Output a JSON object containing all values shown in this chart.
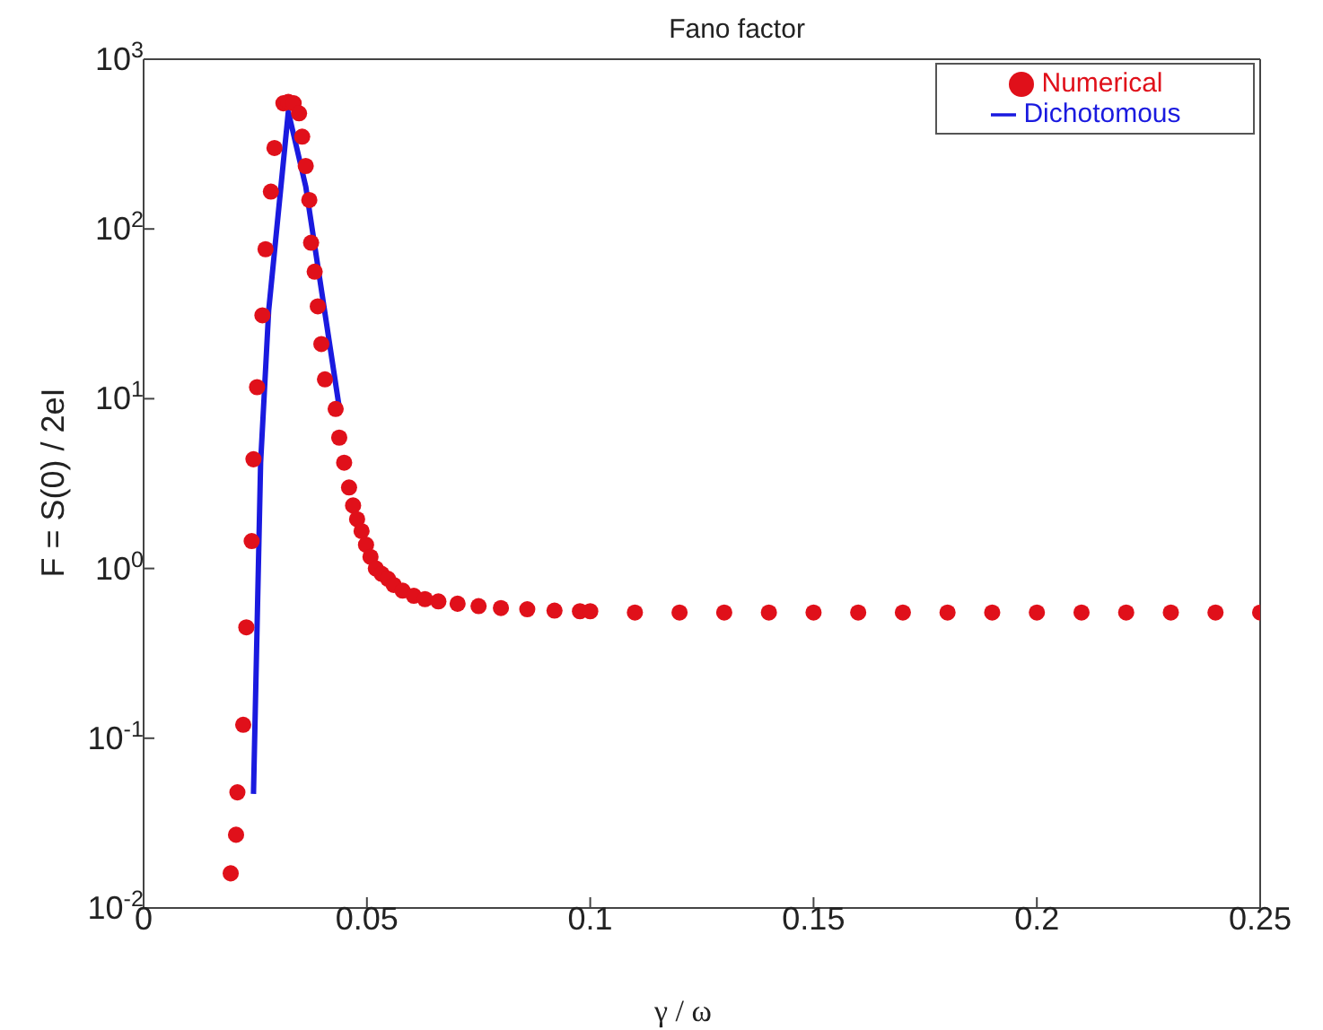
{
  "chart_data": {
    "type": "scatter",
    "title": "Fano factor",
    "xlabel": "γ / ω",
    "ylabel": "F = S(0) / 2eI",
    "log": "y",
    "xlim": [
      0,
      0.25
    ],
    "xticks": [
      0,
      0.05,
      0.1,
      0.15,
      0.2,
      0.25
    ],
    "ylim": [
      0.01,
      1000
    ],
    "yticks": [
      {
        "value": 0.01,
        "label": "10$^{-2}$"
      },
      {
        "value": 0.1,
        "label": "10$^{-1}$"
      },
      {
        "value": 1,
        "label": "10$^{0}$"
      },
      {
        "value": 10,
        "label": "10$^{1}$"
      },
      {
        "value": 100,
        "label": "10$^{2}$"
      },
      {
        "value": 1000,
        "label": "10$^{3}$"
      }
    ],
    "legend": "top right",
    "grid": false,
    "series": [
      {
        "name": "Numerical",
        "type": "scatter",
        "marker": "circle",
        "color": "#e0101a",
        "x": [
          0.0195,
          0.0207,
          0.021,
          0.0223,
          0.023,
          0.0242,
          0.0246,
          0.0254,
          0.0266,
          0.0273,
          0.0285,
          0.0293,
          0.0313,
          0.0324,
          0.0336,
          0.0348,
          0.0355,
          0.0363,
          0.0371,
          0.0375,
          0.0383,
          0.039,
          0.0398,
          0.0406,
          0.043,
          0.0438,
          0.0449,
          0.046,
          0.0469,
          0.0478,
          0.0488,
          0.0498,
          0.0508,
          0.052,
          0.0533,
          0.0547,
          0.056,
          0.058,
          0.0605,
          0.063,
          0.066,
          0.0703,
          0.075,
          0.08,
          0.0859,
          0.092,
          0.0977,
          0.1,
          0.11,
          0.12,
          0.13,
          0.14,
          0.15,
          0.16,
          0.17,
          0.18,
          0.19,
          0.2,
          0.21,
          0.22,
          0.23,
          0.24,
          0.25
        ],
        "values": [
          0.016,
          0.027,
          0.048,
          0.12,
          0.45,
          1.45,
          4.4,
          11.7,
          31,
          76,
          166,
          300,
          550,
          560,
          550,
          480,
          350,
          235,
          148,
          83,
          56,
          35,
          21,
          13,
          8.7,
          5.9,
          4.2,
          3.0,
          2.35,
          1.95,
          1.66,
          1.38,
          1.17,
          1.0,
          0.93,
          0.87,
          0.8,
          0.74,
          0.69,
          0.66,
          0.64,
          0.62,
          0.6,
          0.585,
          0.575,
          0.565,
          0.56,
          0.56,
          0.55,
          0.55,
          0.55,
          0.55,
          0.55,
          0.55,
          0.55,
          0.55,
          0.55,
          0.55,
          0.55,
          0.55,
          0.55,
          0.55,
          0.55
        ]
      },
      {
        "name": "Dichotomous",
        "type": "line",
        "line_style": "solid",
        "color": "#1a1adf",
        "x": [
          0.0246,
          0.0262,
          0.028,
          0.0324,
          0.0363,
          0.0438
        ],
        "values": [
          0.047,
          4.2,
          33,
          490,
          178,
          8.9
        ]
      }
    ]
  }
}
